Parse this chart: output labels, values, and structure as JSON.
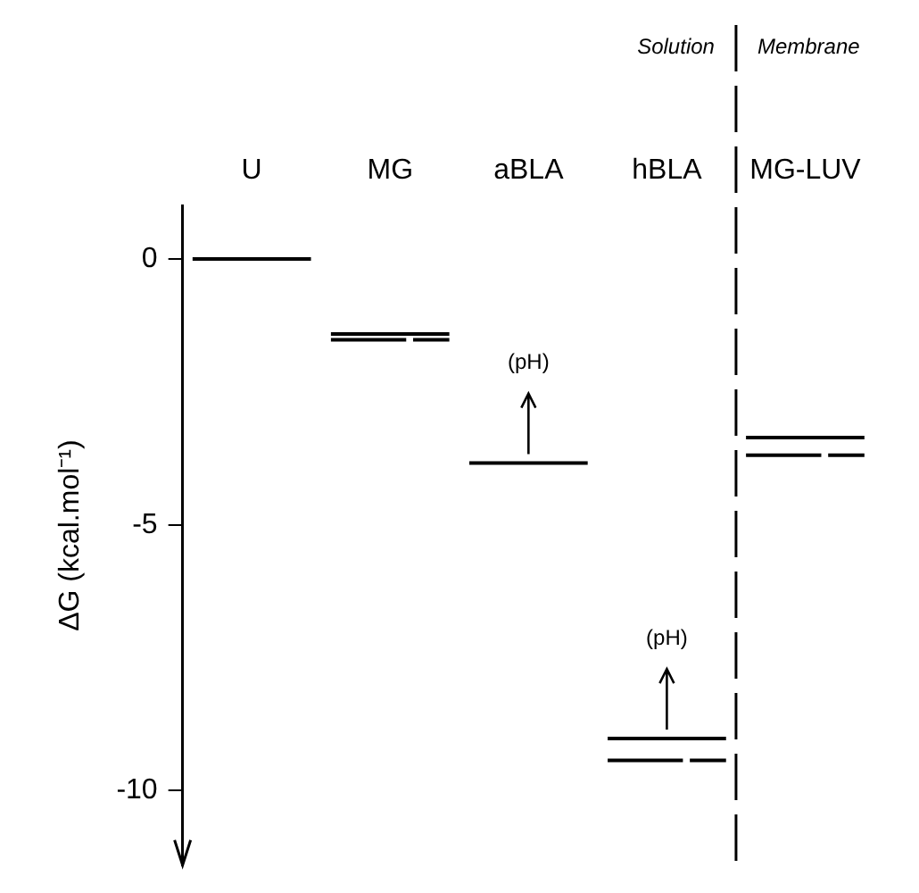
{
  "chart_data": {
    "type": "bar",
    "ylabel": "ΔG (kcal.mol⁻¹)",
    "categories": [
      "U",
      "MG",
      "aBLA",
      "hBLA",
      "MG-LUV"
    ],
    "ylim": [
      -11.4,
      1
    ],
    "yticks": [
      0,
      -5,
      -10
    ],
    "grid": false,
    "legend": false,
    "series": [
      {
        "color": "#000000",
        "line_style": "solid",
        "base": [
          0,
          -1.41,
          -3.84,
          -9.02,
          -3.36
        ],
        "values": [
          0,
          0,
          0,
          0,
          0
        ]
      },
      {
        "color": "#000000",
        "line_style": "dashed",
        "base": [
          null,
          -1.52,
          null,
          -9.43,
          -3.69
        ],
        "values": [
          null,
          0,
          null,
          0,
          0
        ]
      }
    ],
    "annotations": [
      "(pH)",
      "(pH)",
      "Solution",
      "Membrane"
    ]
  }
}
